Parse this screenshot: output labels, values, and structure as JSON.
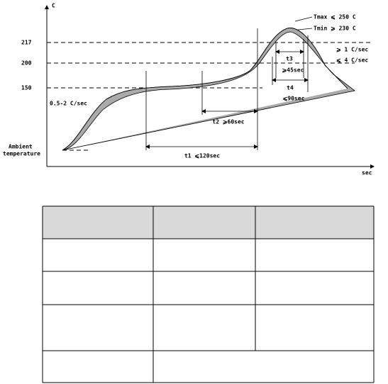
{
  "diagram": {
    "y_axis_label": "C",
    "x_axis_label": "sec",
    "levels": [
      "217",
      "200",
      "150"
    ],
    "ambient_label": [
      "Ambient",
      "temperature"
    ],
    "ramp_label": "0.5-2 C/sec",
    "t1_label": "t1 ⩽120sec",
    "t2_label": "t2 ⩾60sec",
    "t3_label": "t3",
    "t3_limit": "⩾45sec",
    "t4_label": "t4",
    "t4_limit": "⩽90sec",
    "tmax_label": "Tmax ⩽ 250 C",
    "tmin_label": "Tmin ⩾ 230 C",
    "ramp_up_label": "⩾ 1 C/sec",
    "ramp_down_label": "⩽ 4 C/sec"
  }
}
